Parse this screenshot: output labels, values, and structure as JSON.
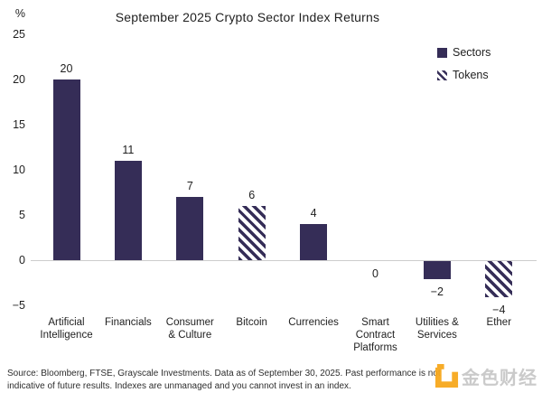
{
  "chart_data": {
    "type": "bar",
    "title": "September 2025 Crypto Sector Index Returns",
    "unit_label": "%",
    "ylim": [
      -5,
      25
    ],
    "yticks": [
      25,
      20,
      15,
      10,
      5,
      0,
      -5
    ],
    "grid": "zero-line-only",
    "legend_position": "top-right",
    "categories": [
      "Artificial Intelligence",
      "Financials",
      "Consumer & Culture",
      "Bitcoin",
      "Currencies",
      "Smart Contract Platforms",
      "Utilities & Services",
      "Ether"
    ],
    "category_label_lines": [
      [
        "Artificial",
        "Intelligence"
      ],
      [
        "Financials"
      ],
      [
        "Consumer",
        "& Culture"
      ],
      [
        "Bitcoin"
      ],
      [
        "Currencies"
      ],
      [
        "Smart",
        "Contract",
        "Platforms"
      ],
      [
        "Utilities &",
        "Services"
      ],
      [
        "Ether"
      ]
    ],
    "values": [
      20,
      11,
      7,
      6,
      4,
      0,
      -2,
      -4
    ],
    "bar_styles": [
      "solid",
      "solid",
      "solid",
      "hatched",
      "solid",
      "solid",
      "solid",
      "hatched"
    ],
    "legend": [
      {
        "label": "Sectors",
        "style": "solid"
      },
      {
        "label": "Tokens",
        "style": "hatched"
      }
    ],
    "colors": {
      "bar": "#352D57",
      "zero_line": "#CCCCCC",
      "logo_orange": "#F7A81D"
    }
  },
  "source": {
    "line1": "Source: Bloomberg, FTSE, Grayscale Investments. Data as of September 30, 2025. Past performance is not",
    "line2": "indicative of future results. Indexes are unmanaged and you cannot invest in an index."
  },
  "watermark": {
    "text": "金色财经"
  }
}
